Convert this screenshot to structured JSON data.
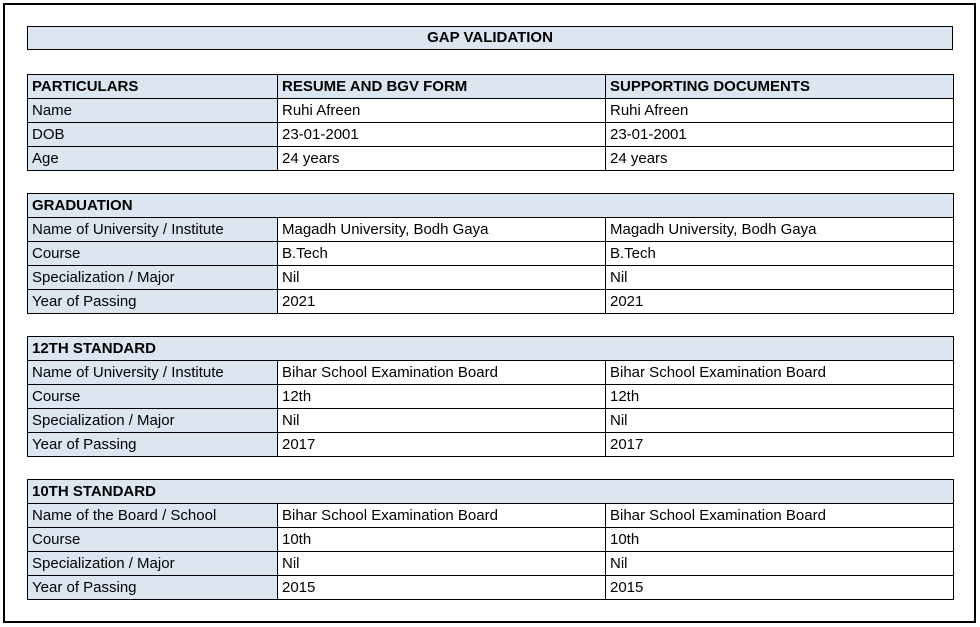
{
  "title_bar": {
    "text": "GAP VALIDATION"
  },
  "colors": {
    "header_bg": "#dce6f1",
    "border": "#000000",
    "text": "#000000",
    "page_bg": "#ffffff"
  },
  "particulars_table": {
    "headers": [
      "PARTICULARS",
      "RESUME AND BGV FORM",
      "SUPPORTING DOCUMENTS"
    ],
    "rows": [
      [
        "Name",
        "Ruhi Afreen",
        "Ruhi Afreen"
      ],
      [
        "DOB",
        "23-01-2001",
        "23-01-2001"
      ],
      [
        "Age",
        "24 years",
        "24 years"
      ]
    ]
  },
  "sections": [
    {
      "title": "GRADUATION",
      "rows": [
        [
          "Name of University / Institute",
          "Magadh University, Bodh Gaya",
          "Magadh University, Bodh Gaya"
        ],
        [
          "Course",
          "B.Tech",
          "B.Tech"
        ],
        [
          "Specialization / Major",
          "Nil",
          "Nil"
        ],
        [
          "Year of Passing",
          "2021",
          "2021"
        ]
      ]
    },
    {
      "title": "12TH STANDARD",
      "rows": [
        [
          "Name of University / Institute",
          "Bihar School Examination Board",
          "Bihar School Examination Board"
        ],
        [
          "Course",
          "12th",
          "12th"
        ],
        [
          "Specialization / Major",
          "Nil",
          "Nil"
        ],
        [
          "Year of Passing",
          "2017",
          "2017"
        ]
      ]
    },
    {
      "title": "10TH STANDARD",
      "rows": [
        [
          "Name of the Board / School",
          "Bihar School Examination Board",
          "Bihar School Examination Board"
        ],
        [
          "Course",
          "10th",
          "10th"
        ],
        [
          "Specialization / Major",
          "Nil",
          "Nil"
        ],
        [
          "Year of Passing",
          "2015",
          "2015"
        ]
      ]
    }
  ]
}
